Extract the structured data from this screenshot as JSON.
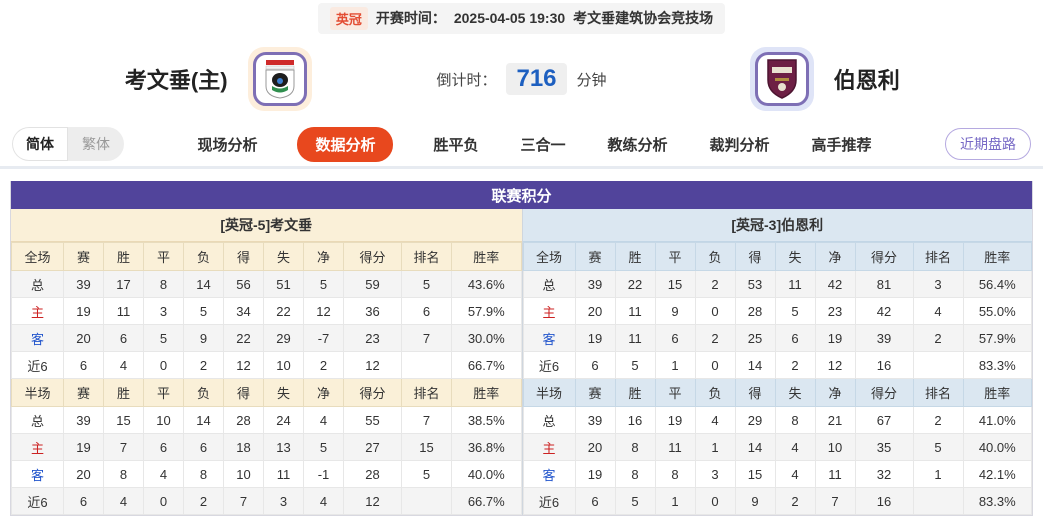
{
  "top_bar": {
    "league": "英冠",
    "kickoff_label": "开赛时间：",
    "kickoff_time": "2025-04-05 19:30",
    "venue": "考文垂建筑协会竞技场"
  },
  "header": {
    "home_name": "考文垂(主)",
    "away_name": "伯恩利",
    "countdown_label": "倒计时：",
    "countdown_value": "716",
    "countdown_unit": "分钟"
  },
  "nav": {
    "lang_toggle": [
      {
        "label": "简体",
        "active": true
      },
      {
        "label": "繁体",
        "active": false
      }
    ],
    "tabs": [
      {
        "label": "现场分析",
        "active": false
      },
      {
        "label": "数据分析",
        "active": true
      },
      {
        "label": "胜平负",
        "active": false
      },
      {
        "label": "三合一",
        "active": false
      },
      {
        "label": "教练分析",
        "active": false
      },
      {
        "label": "裁判分析",
        "active": false
      },
      {
        "label": "高手推荐",
        "active": false
      }
    ],
    "recent_button": "近期盘路"
  },
  "standings": {
    "title": "联赛积分",
    "columns_full": [
      "全场",
      "赛",
      "胜",
      "平",
      "负",
      "得",
      "失",
      "净",
      "得分",
      "排名",
      "胜率"
    ],
    "columns_half": [
      "半场",
      "赛",
      "胜",
      "平",
      "负",
      "得",
      "失",
      "净",
      "得分",
      "排名",
      "胜率"
    ],
    "home": {
      "header": "[英冠-5]考文垂",
      "full": [
        {
          "label": "总",
          "type": "total",
          "cells": [
            "39",
            "17",
            "8",
            "14",
            "56",
            "51",
            "5",
            "59",
            "5",
            "43.6%"
          ]
        },
        {
          "label": "主",
          "type": "home",
          "cells": [
            "19",
            "11",
            "3",
            "5",
            "34",
            "22",
            "12",
            "36",
            "6",
            "57.9%"
          ]
        },
        {
          "label": "客",
          "type": "away",
          "cells": [
            "20",
            "6",
            "5",
            "9",
            "22",
            "29",
            "-7",
            "23",
            "7",
            "30.0%"
          ]
        },
        {
          "label": "近6",
          "type": "recent",
          "cells": [
            "6",
            "4",
            "0",
            "2",
            "12",
            "10",
            "2",
            "12",
            "",
            "66.7%"
          ]
        }
      ],
      "half": [
        {
          "label": "总",
          "type": "total",
          "cells": [
            "39",
            "15",
            "10",
            "14",
            "28",
            "24",
            "4",
            "55",
            "7",
            "38.5%"
          ]
        },
        {
          "label": "主",
          "type": "home",
          "cells": [
            "19",
            "7",
            "6",
            "6",
            "18",
            "13",
            "5",
            "27",
            "15",
            "36.8%"
          ]
        },
        {
          "label": "客",
          "type": "away",
          "cells": [
            "20",
            "8",
            "4",
            "8",
            "10",
            "11",
            "-1",
            "28",
            "5",
            "40.0%"
          ]
        },
        {
          "label": "近6",
          "type": "recent",
          "cells": [
            "6",
            "4",
            "0",
            "2",
            "7",
            "3",
            "4",
            "12",
            "",
            "66.7%"
          ]
        }
      ]
    },
    "away": {
      "header": "[英冠-3]伯恩利",
      "full": [
        {
          "label": "总",
          "type": "total",
          "cells": [
            "39",
            "22",
            "15",
            "2",
            "53",
            "11",
            "42",
            "81",
            "3",
            "56.4%"
          ]
        },
        {
          "label": "主",
          "type": "home",
          "cells": [
            "20",
            "11",
            "9",
            "0",
            "28",
            "5",
            "23",
            "42",
            "4",
            "55.0%"
          ]
        },
        {
          "label": "客",
          "type": "away",
          "cells": [
            "19",
            "11",
            "6",
            "2",
            "25",
            "6",
            "19",
            "39",
            "2",
            "57.9%"
          ]
        },
        {
          "label": "近6",
          "type": "recent",
          "cells": [
            "6",
            "5",
            "1",
            "0",
            "14",
            "2",
            "12",
            "16",
            "",
            "83.3%"
          ]
        }
      ],
      "half": [
        {
          "label": "总",
          "type": "total",
          "cells": [
            "39",
            "16",
            "19",
            "4",
            "29",
            "8",
            "21",
            "67",
            "2",
            "41.0%"
          ]
        },
        {
          "label": "主",
          "type": "home",
          "cells": [
            "20",
            "8",
            "11",
            "1",
            "14",
            "4",
            "10",
            "35",
            "5",
            "40.0%"
          ]
        },
        {
          "label": "客",
          "type": "away",
          "cells": [
            "19",
            "8",
            "8",
            "3",
            "15",
            "4",
            "11",
            "32",
            "1",
            "42.1%"
          ]
        },
        {
          "label": "近6",
          "type": "recent",
          "cells": [
            "6",
            "5",
            "1",
            "0",
            "9",
            "2",
            "7",
            "16",
            "",
            "83.3%"
          ]
        }
      ]
    }
  },
  "colors": {
    "title_bar": "#51449b",
    "home_panel_bg": "#faf0d8",
    "away_panel_bg": "#dbe7f1",
    "active_tab": "#e8481e",
    "home_row_label": "#cc2222",
    "away_row_label": "#2255cc",
    "countdown_number": "#1d5fc0"
  }
}
